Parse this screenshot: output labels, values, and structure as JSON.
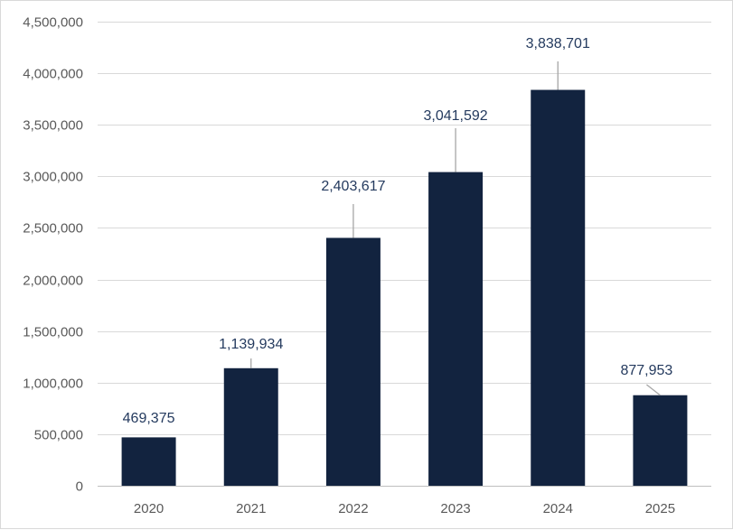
{
  "chart_data": {
    "type": "bar",
    "categories": [
      "2020",
      "2021",
      "2022",
      "2023",
      "2024",
      "2025"
    ],
    "values": [
      469375,
      1139934,
      2403617,
      3041592,
      3838701,
      877953
    ],
    "value_labels": [
      "469,375",
      "1,139,934",
      "2,403,617",
      "3,041,592",
      "3,838,701",
      "877,953"
    ],
    "title": "",
    "xlabel": "",
    "ylabel": "",
    "ylim": [
      0,
      4500000
    ],
    "y_ticks": [
      0,
      500000,
      1000000,
      1500000,
      2000000,
      2500000,
      3000000,
      3500000,
      4000000,
      4500000
    ],
    "y_tick_labels": [
      "0",
      "500,000",
      "1,000,000",
      "1,500,000",
      "2,000,000",
      "2,500,000",
      "3,000,000",
      "3,500,000",
      "4,000,000",
      "4,500,000"
    ],
    "grid": true,
    "legend": "none",
    "bar_color": "#12233f",
    "data_label_color": "#243a5e",
    "data_label_style": "callout-with-leader-line"
  }
}
